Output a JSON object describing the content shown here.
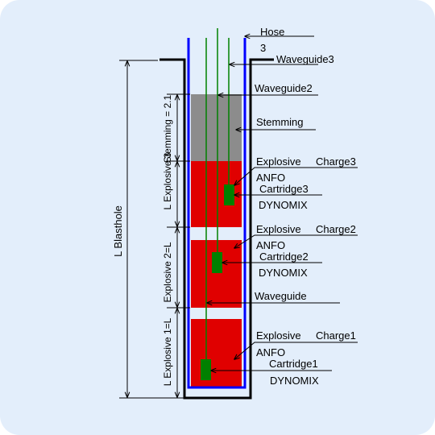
{
  "colors": {
    "background": "#e3eefb",
    "explosive": "#e00000",
    "stemming": "#8c8c8c",
    "cartridge": "#008000",
    "waveguide": "#008000",
    "hose": "#0000ff",
    "wall": "#000000"
  },
  "labels": {
    "hose": "Hose",
    "hose_number": "3",
    "waveguide3": "Waveguide3",
    "waveguide2": "Waveguide2",
    "stemming": "Stemming",
    "explosive_charge_word": "Explosive",
    "charge3": "Charge3",
    "anfo3": "ANFO",
    "cartridge3": "Cartridge3",
    "dynomix3": "DYNOMIX",
    "charge2": "Charge2",
    "anfo2": "ANFO",
    "cartridge2": "Cartridge2",
    "dynomix2": "DYNOMIX",
    "waveguide": "Waveguide",
    "charge1": "Charge1",
    "anfo1": "ANFO",
    "cartridge1": "Cartridge1",
    "dynomix1": "DYNOMIX"
  },
  "dimensions": {
    "blasthole": "L Blasthole",
    "stemming": "Stemming = 2.1",
    "explosive3": "L Explosive 3",
    "explosive2": "Explosive 2=L",
    "explosive1": "L Explosive 1=L"
  }
}
